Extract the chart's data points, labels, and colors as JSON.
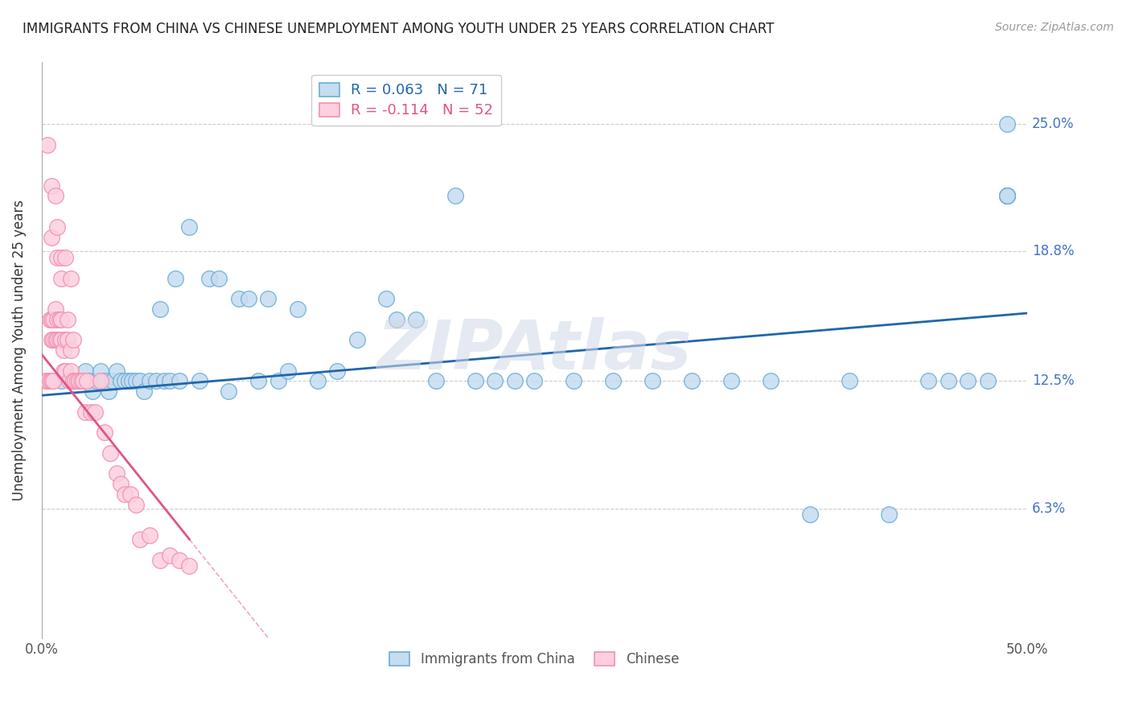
{
  "title": "IMMIGRANTS FROM CHINA VS CHINESE UNEMPLOYMENT AMONG YOUTH UNDER 25 YEARS CORRELATION CHART",
  "source": "Source: ZipAtlas.com",
  "xlabel_blue": "Immigrants from China",
  "xlabel_pink": "Chinese",
  "ylabel": "Unemployment Among Youth under 25 years",
  "watermark": "ZIPAtlas",
  "xlim": [
    0.0,
    0.5
  ],
  "ylim": [
    0.0,
    0.28
  ],
  "yticks": [
    0.063,
    0.125,
    0.188,
    0.25
  ],
  "ytick_labels": [
    "6.3%",
    "12.5%",
    "18.8%",
    "25.0%"
  ],
  "xtick_labels_show": [
    "0.0%",
    "50.0%"
  ],
  "legend_blue_r": "R = 0.063",
  "legend_blue_n": "N = 71",
  "legend_pink_r": "R = -0.114",
  "legend_pink_n": "N = 52",
  "blue_face_color": "#c6dcf0",
  "blue_edge_color": "#6baed6",
  "pink_face_color": "#fcd0de",
  "pink_edge_color": "#f48fb1",
  "blue_line_color": "#2166ac",
  "pink_line_color": "#e0538a",
  "blue_scatter_x": [
    0.01,
    0.012,
    0.015,
    0.016,
    0.018,
    0.02,
    0.022,
    0.024,
    0.026,
    0.028,
    0.03,
    0.032,
    0.034,
    0.036,
    0.038,
    0.04,
    0.042,
    0.044,
    0.046,
    0.048,
    0.05,
    0.052,
    0.055,
    0.058,
    0.06,
    0.062,
    0.065,
    0.068,
    0.07,
    0.075,
    0.08,
    0.085,
    0.09,
    0.095,
    0.1,
    0.105,
    0.11,
    0.115,
    0.12,
    0.125,
    0.13,
    0.14,
    0.15,
    0.16,
    0.175,
    0.18,
    0.19,
    0.2,
    0.21,
    0.22,
    0.23,
    0.24,
    0.25,
    0.27,
    0.29,
    0.31,
    0.33,
    0.35,
    0.37,
    0.39,
    0.41,
    0.43,
    0.45,
    0.46,
    0.47,
    0.48,
    0.49,
    0.49,
    0.49,
    0.49,
    0.49
  ],
  "blue_scatter_y": [
    0.125,
    0.13,
    0.125,
    0.125,
    0.125,
    0.125,
    0.13,
    0.125,
    0.12,
    0.125,
    0.13,
    0.125,
    0.12,
    0.125,
    0.13,
    0.125,
    0.125,
    0.125,
    0.125,
    0.125,
    0.125,
    0.12,
    0.125,
    0.125,
    0.16,
    0.125,
    0.125,
    0.175,
    0.125,
    0.2,
    0.125,
    0.175,
    0.175,
    0.12,
    0.165,
    0.165,
    0.125,
    0.165,
    0.125,
    0.13,
    0.16,
    0.125,
    0.13,
    0.145,
    0.165,
    0.155,
    0.155,
    0.125,
    0.215,
    0.125,
    0.125,
    0.125,
    0.125,
    0.125,
    0.125,
    0.125,
    0.125,
    0.125,
    0.125,
    0.06,
    0.125,
    0.06,
    0.125,
    0.125,
    0.125,
    0.125,
    0.215,
    0.215,
    0.215,
    0.215,
    0.25
  ],
  "pink_scatter_x": [
    0.002,
    0.003,
    0.004,
    0.004,
    0.005,
    0.005,
    0.005,
    0.006,
    0.006,
    0.006,
    0.007,
    0.007,
    0.008,
    0.008,
    0.009,
    0.009,
    0.01,
    0.01,
    0.011,
    0.011,
    0.012,
    0.012,
    0.013,
    0.013,
    0.014,
    0.015,
    0.015,
    0.016,
    0.016,
    0.017,
    0.018,
    0.019,
    0.02,
    0.021,
    0.022,
    0.023,
    0.025,
    0.027,
    0.03,
    0.032,
    0.035,
    0.038,
    0.04,
    0.042,
    0.045,
    0.048,
    0.05,
    0.055,
    0.06,
    0.065,
    0.07,
    0.075
  ],
  "pink_scatter_y": [
    0.125,
    0.125,
    0.125,
    0.155,
    0.125,
    0.145,
    0.155,
    0.125,
    0.145,
    0.155,
    0.145,
    0.16,
    0.145,
    0.155,
    0.145,
    0.155,
    0.145,
    0.155,
    0.13,
    0.14,
    0.13,
    0.145,
    0.145,
    0.155,
    0.125,
    0.13,
    0.14,
    0.125,
    0.145,
    0.125,
    0.125,
    0.125,
    0.125,
    0.125,
    0.11,
    0.125,
    0.11,
    0.11,
    0.125,
    0.1,
    0.09,
    0.08,
    0.075,
    0.07,
    0.07,
    0.065,
    0.048,
    0.05,
    0.038,
    0.04,
    0.038,
    0.035
  ],
  "pink_high_x": [
    0.003,
    0.005,
    0.005,
    0.007,
    0.008,
    0.008,
    0.01,
    0.01,
    0.012,
    0.015
  ],
  "pink_high_y": [
    0.24,
    0.22,
    0.195,
    0.215,
    0.185,
    0.2,
    0.185,
    0.175,
    0.185,
    0.175
  ]
}
